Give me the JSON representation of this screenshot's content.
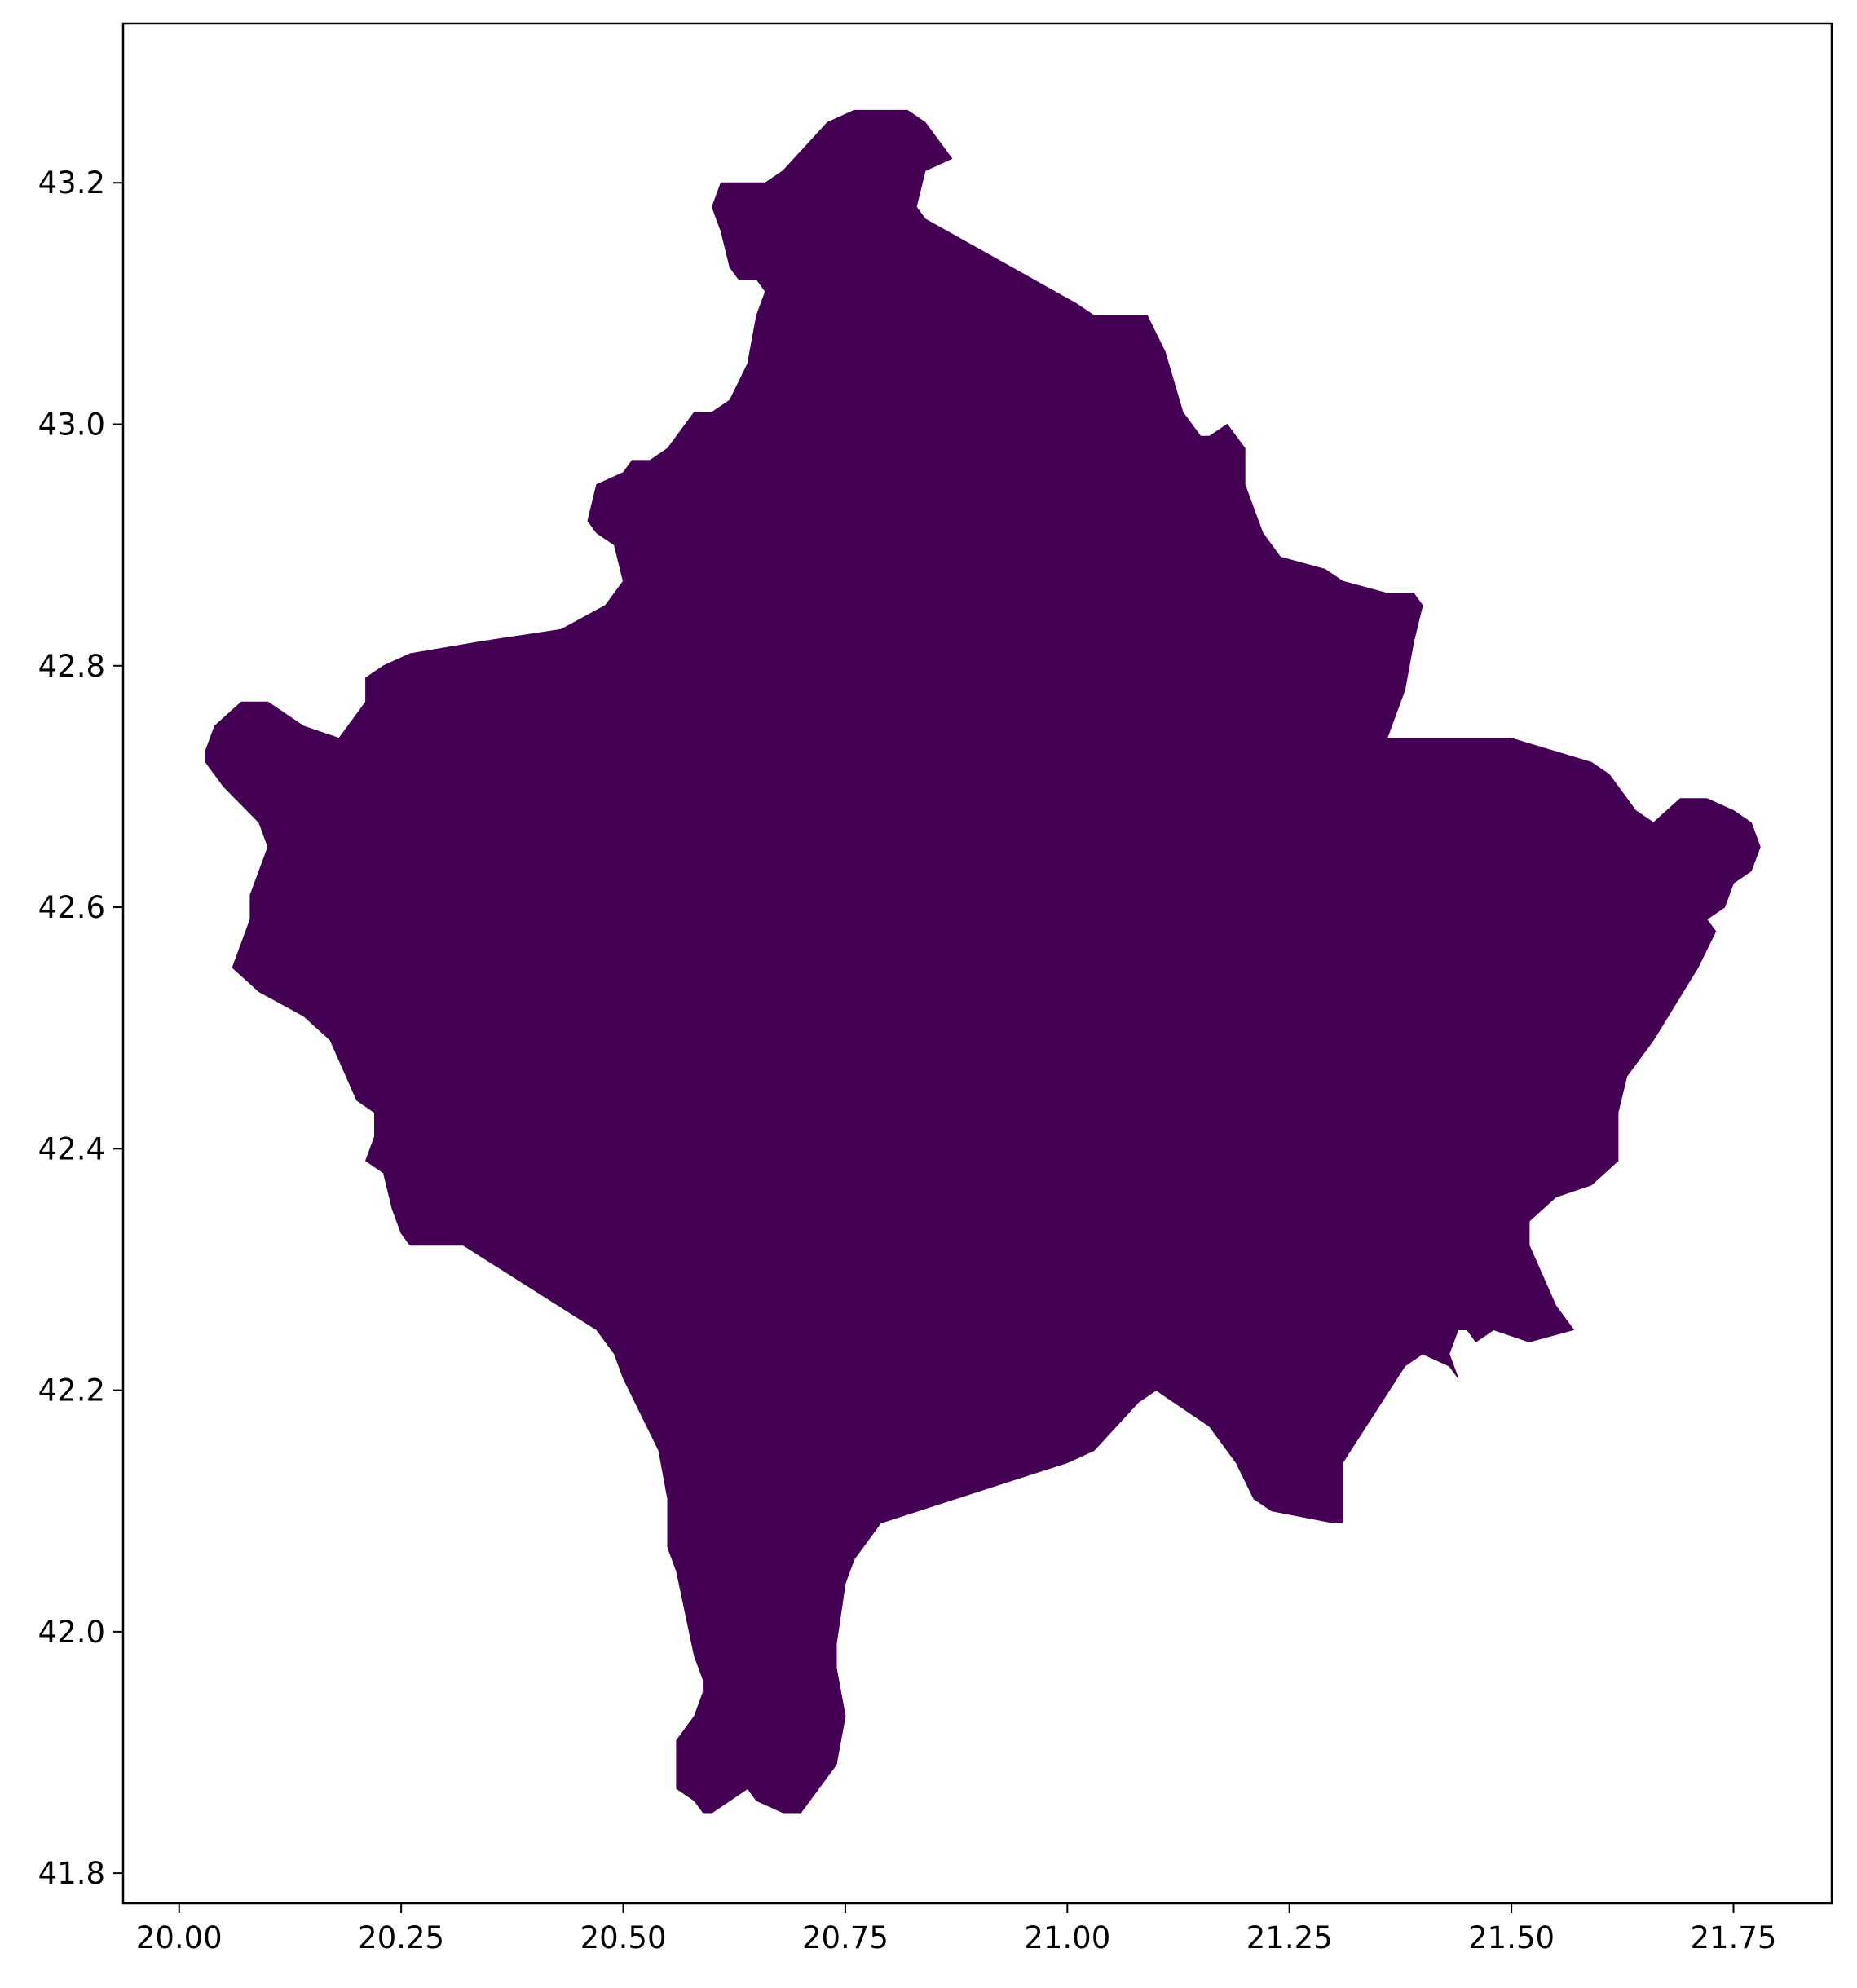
{
  "chart_data": {
    "type": "map",
    "title": "",
    "xlabel": "",
    "ylabel": "",
    "xlim": [
      19.9369,
      21.8606
    ],
    "ylim": [
      41.7751,
      43.3318
    ],
    "x_ticks": [
      "20.00",
      "20.25",
      "20.50",
      "20.75",
      "21.00",
      "21.25",
      "21.50",
      "21.75"
    ],
    "y_ticks": [
      "41.8",
      "42.0",
      "42.2",
      "42.4",
      "42.6",
      "42.8",
      "43.0",
      "43.2"
    ],
    "x_tick_values": [
      20.0,
      20.25,
      20.5,
      20.75,
      21.0,
      21.25,
      21.5,
      21.75
    ],
    "y_tick_values": [
      41.8,
      42.0,
      42.2,
      42.4,
      42.6,
      42.8,
      43.0,
      43.2
    ],
    "grid": false,
    "legend": false,
    "regions": [
      {
        "fill": "#440154",
        "coordinates": [
          [
            20.79,
            43.26
          ],
          [
            20.76,
            43.26
          ],
          [
            20.73,
            43.25
          ],
          [
            20.68,
            43.21
          ],
          [
            20.66,
            43.2
          ],
          [
            20.62,
            43.2
          ],
          [
            20.61,
            43.2
          ],
          [
            20.6,
            43.18
          ],
          [
            20.61,
            43.16
          ],
          [
            20.62,
            43.13
          ],
          [
            20.63,
            43.12
          ],
          [
            20.65,
            43.12
          ],
          [
            20.66,
            43.11
          ],
          [
            20.65,
            43.09
          ],
          [
            20.64,
            43.05
          ],
          [
            20.62,
            43.02
          ],
          [
            20.6,
            43.01
          ],
          [
            20.58,
            43.01
          ],
          [
            20.57,
            43.0
          ],
          [
            20.55,
            42.98
          ],
          [
            20.53,
            42.97
          ],
          [
            20.51,
            42.97
          ],
          [
            20.5,
            42.96
          ],
          [
            20.47,
            42.95
          ],
          [
            20.46,
            42.92
          ],
          [
            20.47,
            42.91
          ],
          [
            20.49,
            42.9
          ],
          [
            20.5,
            42.87
          ],
          [
            20.48,
            42.85
          ],
          [
            20.43,
            42.83
          ],
          [
            20.34,
            42.82
          ],
          [
            20.26,
            42.81
          ],
          [
            20.23,
            42.8
          ],
          [
            20.21,
            42.79
          ],
          [
            20.21,
            42.77
          ],
          [
            20.18,
            42.74
          ],
          [
            20.14,
            42.75
          ],
          [
            20.1,
            42.77
          ],
          [
            20.07,
            42.77
          ],
          [
            20.04,
            42.75
          ],
          [
            20.03,
            42.73
          ],
          [
            20.03,
            42.72
          ],
          [
            20.05,
            42.7
          ],
          [
            20.09,
            42.67
          ],
          [
            20.1,
            42.65
          ],
          [
            20.08,
            42.61
          ],
          [
            20.08,
            42.59
          ],
          [
            20.07,
            42.57
          ],
          [
            20.06,
            42.55
          ],
          [
            20.09,
            42.53
          ],
          [
            20.14,
            42.51
          ],
          [
            20.17,
            42.49
          ],
          [
            20.2,
            42.44
          ],
          [
            20.22,
            42.43
          ],
          [
            20.22,
            42.41
          ],
          [
            20.21,
            42.39
          ],
          [
            20.23,
            42.38
          ],
          [
            20.24,
            42.35
          ],
          [
            20.25,
            42.33
          ],
          [
            20.26,
            42.32
          ],
          [
            20.32,
            42.32
          ],
          [
            20.47,
            42.25
          ],
          [
            20.49,
            42.23
          ],
          [
            20.5,
            42.21
          ],
          [
            20.54,
            42.15
          ],
          [
            20.55,
            42.11
          ],
          [
            20.55,
            42.07
          ],
          [
            20.56,
            42.05
          ],
          [
            20.58,
            41.98
          ],
          [
            20.59,
            41.96
          ],
          [
            20.59,
            41.95
          ],
          [
            20.58,
            41.93
          ],
          [
            20.57,
            41.92
          ],
          [
            20.56,
            41.91
          ],
          [
            20.56,
            41.89
          ],
          [
            20.56,
            41.87
          ],
          [
            20.58,
            41.86
          ],
          [
            20.59,
            41.85
          ],
          [
            20.6,
            41.85
          ],
          [
            20.62,
            41.86
          ],
          [
            20.64,
            41.87
          ],
          [
            20.65,
            41.86
          ],
          [
            20.68,
            41.85
          ],
          [
            20.7,
            41.85
          ],
          [
            20.72,
            41.87
          ],
          [
            20.74,
            41.89
          ],
          [
            20.75,
            41.93
          ],
          [
            20.74,
            41.97
          ],
          [
            20.74,
            41.99
          ],
          [
            20.75,
            42.04
          ],
          [
            20.76,
            42.06
          ],
          [
            20.79,
            42.09
          ],
          [
            21.0,
            42.14
          ],
          [
            21.03,
            42.15
          ],
          [
            21.08,
            42.19
          ],
          [
            21.1,
            42.2
          ],
          [
            21.12,
            42.19
          ],
          [
            21.16,
            42.17
          ],
          [
            21.19,
            42.14
          ],
          [
            21.21,
            42.11
          ],
          [
            21.23,
            42.1
          ],
          [
            21.3,
            42.09
          ],
          [
            21.31,
            42.09
          ],
          [
            21.31,
            42.11
          ],
          [
            21.31,
            42.13
          ],
          [
            21.31,
            42.14
          ],
          [
            21.38,
            42.22
          ],
          [
            21.4,
            42.23
          ],
          [
            21.43,
            42.22
          ],
          [
            21.44,
            42.21
          ],
          [
            21.43,
            42.23
          ],
          [
            21.44,
            42.25
          ],
          [
            21.45,
            42.25
          ],
          [
            21.46,
            42.24
          ],
          [
            21.48,
            42.25
          ],
          [
            21.52,
            42.24
          ],
          [
            21.57,
            42.25
          ],
          [
            21.55,
            42.27
          ],
          [
            21.52,
            42.32
          ],
          [
            21.52,
            42.34
          ],
          [
            21.55,
            42.36
          ],
          [
            21.59,
            42.37
          ],
          [
            21.62,
            42.39
          ],
          [
            21.62,
            42.43
          ],
          [
            21.63,
            42.46
          ],
          [
            21.66,
            42.49
          ],
          [
            21.71,
            42.55
          ],
          [
            21.73,
            42.58
          ],
          [
            21.72,
            42.59
          ],
          [
            21.74,
            42.6
          ],
          [
            21.75,
            42.62
          ],
          [
            21.77,
            42.63
          ],
          [
            21.78,
            42.65
          ],
          [
            21.77,
            42.67
          ],
          [
            21.75,
            42.68
          ],
          [
            21.72,
            42.69
          ],
          [
            21.69,
            42.69
          ],
          [
            21.66,
            42.67
          ],
          [
            21.64,
            42.68
          ],
          [
            21.61,
            42.71
          ],
          [
            21.59,
            42.72
          ],
          [
            21.5,
            42.74
          ],
          [
            21.4,
            42.74
          ],
          [
            21.38,
            42.74
          ],
          [
            21.36,
            42.74
          ],
          [
            21.37,
            42.76
          ],
          [
            21.38,
            42.78
          ],
          [
            21.39,
            42.82
          ],
          [
            21.4,
            42.85
          ],
          [
            21.39,
            42.86
          ],
          [
            21.36,
            42.86
          ],
          [
            21.31,
            42.87
          ],
          [
            21.29,
            42.88
          ],
          [
            21.24,
            42.89
          ],
          [
            21.22,
            42.91
          ],
          [
            21.2,
            42.95
          ],
          [
            21.2,
            42.98
          ],
          [
            21.18,
            43.0
          ],
          [
            21.16,
            42.99
          ],
          [
            21.15,
            42.99
          ],
          [
            21.13,
            43.01
          ],
          [
            21.11,
            43.06
          ],
          [
            21.09,
            43.09
          ],
          [
            21.03,
            43.09
          ],
          [
            21.01,
            43.1
          ],
          [
            20.84,
            43.17
          ],
          [
            20.83,
            43.18
          ],
          [
            20.84,
            43.21
          ],
          [
            20.87,
            43.22
          ],
          [
            20.86,
            43.23
          ],
          [
            20.84,
            43.25
          ],
          [
            20.82,
            43.26
          ]
        ]
      }
    ]
  }
}
